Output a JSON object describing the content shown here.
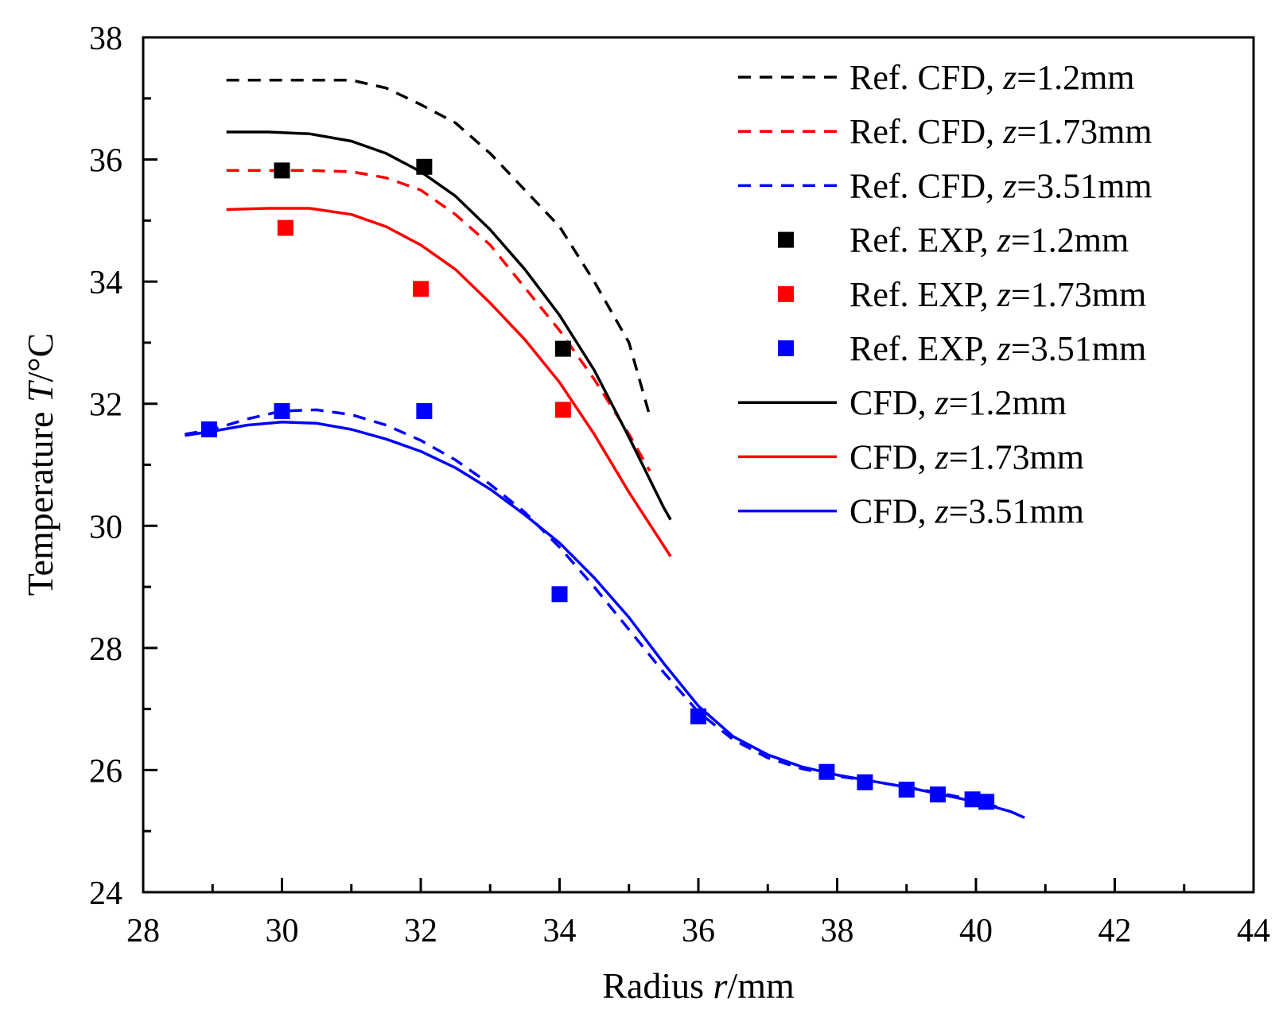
{
  "chart_data": {
    "type": "line",
    "xlabel": {
      "prefix": "Radius ",
      "var": "r",
      "suffix": "/mm"
    },
    "ylabel": {
      "prefix": "Temperature ",
      "var": "T",
      "suffix": "/°C"
    },
    "xlim": [
      28,
      44
    ],
    "ylim": [
      24,
      38
    ],
    "xticks": [
      "28",
      "30",
      "32",
      "34",
      "36",
      "38",
      "40",
      "42",
      "44"
    ],
    "xtick_values": [
      28,
      30,
      32,
      34,
      36,
      38,
      40,
      42,
      44
    ],
    "yticks": [
      "24",
      "26",
      "28",
      "30",
      "32",
      "34",
      "36",
      "38"
    ],
    "ytick_values": [
      24,
      26,
      28,
      30,
      32,
      34,
      36,
      38
    ],
    "legend_position": "top-right",
    "series": [
      {
        "name": "Ref. CFD, z=1.2mm",
        "label": {
          "prefix": "Ref. CFD, ",
          "var": "z",
          "suffix": "=1.2mm"
        },
        "kind": "dashed",
        "color": "#000000",
        "x": [
          29.2,
          29.8,
          30.4,
          31.0,
          31.5,
          32.0,
          32.5,
          33.0,
          33.5,
          34.0,
          34.5,
          35.0,
          35.3
        ],
        "y": [
          37.3,
          37.3,
          37.3,
          37.3,
          37.17,
          36.9,
          36.6,
          36.1,
          35.5,
          34.9,
          34.0,
          33.0,
          31.8
        ]
      },
      {
        "name": "Ref. CFD, z=1.73mm",
        "label": {
          "prefix": "Ref. CFD, ",
          "var": "z",
          "suffix": "=1.73mm"
        },
        "kind": "dashed",
        "color": "#ff0000",
        "x": [
          29.2,
          29.8,
          30.4,
          31.0,
          31.5,
          32.0,
          32.5,
          33.0,
          33.5,
          34.0,
          34.5,
          35.0,
          35.3
        ],
        "y": [
          35.82,
          35.82,
          35.82,
          35.8,
          35.7,
          35.5,
          35.1,
          34.6,
          33.9,
          33.2,
          32.4,
          31.5,
          30.9
        ]
      },
      {
        "name": "Ref. CFD, z=3.51mm",
        "label": {
          "prefix": "Ref. CFD, ",
          "var": "z",
          "suffix": "=3.51mm"
        },
        "kind": "dashed",
        "color": "#0000ff",
        "x": [
          28.6,
          29.0,
          29.5,
          30.0,
          30.5,
          31.0,
          31.5,
          32.0,
          32.5,
          33.0,
          33.5,
          34.0,
          34.5,
          35.0,
          35.5,
          36.0,
          36.5,
          37.0,
          37.5,
          38.0,
          38.5,
          39.0,
          39.5,
          40.0,
          40.3
        ],
        "y": [
          31.5,
          31.58,
          31.75,
          31.88,
          31.9,
          31.82,
          31.65,
          31.4,
          31.08,
          30.68,
          30.22,
          29.65,
          29.0,
          28.3,
          27.6,
          26.95,
          26.5,
          26.2,
          26.02,
          25.9,
          25.82,
          25.72,
          25.62,
          25.5,
          25.4
        ]
      },
      {
        "name": "Ref. EXP, z=1.2mm",
        "label": {
          "prefix": "Ref. EXP, ",
          "var": "z",
          "suffix": "=1.2mm"
        },
        "kind": "marker",
        "color": "#000000",
        "x": [
          30.0,
          32.05,
          34.05
        ],
        "y": [
          35.82,
          35.88,
          32.9
        ]
      },
      {
        "name": "Ref. EXP, z=1.73mm",
        "label": {
          "prefix": "Ref. EXP, ",
          "var": "z",
          "suffix": "=1.73mm"
        },
        "kind": "marker",
        "color": "#ff0000",
        "x": [
          30.05,
          32.0,
          34.05
        ],
        "y": [
          34.88,
          33.88,
          31.9
        ]
      },
      {
        "name": "Ref. EXP, z=3.51mm",
        "label": {
          "prefix": "Ref. EXP, ",
          "var": "z",
          "suffix": "=3.51mm"
        },
        "kind": "marker",
        "color": "#0000ff",
        "x": [
          28.95,
          30.0,
          32.05,
          34.0,
          36.0,
          37.85,
          38.4,
          39.0,
          39.45,
          39.95,
          40.15
        ],
        "y": [
          31.58,
          31.88,
          31.88,
          28.88,
          26.88,
          25.97,
          25.8,
          25.68,
          25.6,
          25.52,
          25.48
        ]
      },
      {
        "name": "CFD, z=1.2mm",
        "label": {
          "prefix": "CFD, ",
          "var": "z",
          "suffix": "=1.2mm"
        },
        "kind": "solid",
        "color": "#000000",
        "x": [
          29.2,
          29.8,
          30.4,
          31.0,
          31.5,
          32.0,
          32.5,
          33.0,
          33.5,
          34.0,
          34.5,
          35.0,
          35.5,
          35.6
        ],
        "y": [
          36.45,
          36.45,
          36.42,
          36.3,
          36.1,
          35.8,
          35.4,
          34.85,
          34.2,
          33.45,
          32.55,
          31.45,
          30.3,
          30.1
        ]
      },
      {
        "name": "CFD, z=1.73mm",
        "label": {
          "prefix": "CFD, ",
          "var": "z",
          "suffix": "=1.73mm"
        },
        "kind": "solid",
        "color": "#ff0000",
        "x": [
          29.2,
          29.8,
          30.4,
          31.0,
          31.5,
          32.0,
          32.5,
          33.0,
          33.5,
          34.0,
          34.5,
          35.0,
          35.6
        ],
        "y": [
          35.18,
          35.2,
          35.2,
          35.1,
          34.9,
          34.6,
          34.2,
          33.65,
          33.05,
          32.35,
          31.5,
          30.55,
          29.5
        ]
      },
      {
        "name": "CFD, z=3.51mm",
        "label": {
          "prefix": "CFD, ",
          "var": "z",
          "suffix": "=3.51mm"
        },
        "kind": "solid",
        "color": "#0000ff",
        "x": [
          28.6,
          29.0,
          29.5,
          30.0,
          30.5,
          31.0,
          31.5,
          32.0,
          32.5,
          33.0,
          33.5,
          34.0,
          34.5,
          35.0,
          35.5,
          36.0,
          36.5,
          37.0,
          37.5,
          38.0,
          38.5,
          39.0,
          39.5,
          40.0,
          40.5,
          40.7
        ],
        "y": [
          31.48,
          31.55,
          31.65,
          31.7,
          31.68,
          31.58,
          31.42,
          31.22,
          30.95,
          30.6,
          30.18,
          29.72,
          29.15,
          28.5,
          27.75,
          27.05,
          26.55,
          26.25,
          26.05,
          25.92,
          25.82,
          25.72,
          25.6,
          25.48,
          25.32,
          25.22
        ]
      }
    ]
  }
}
